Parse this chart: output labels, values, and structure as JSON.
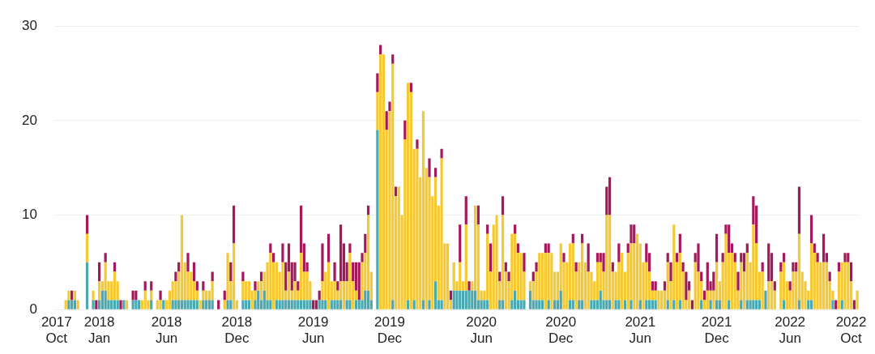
{
  "chart_data": {
    "type": "bar",
    "stacked": true,
    "grid": "y",
    "legend": false,
    "ylim": [
      0,
      30
    ],
    "yticks": [
      0,
      10,
      20,
      30
    ],
    "categories": [
      "2017 Oct",
      null,
      null,
      null,
      null,
      null,
      null,
      null,
      null,
      null,
      null,
      null,
      null,
      null,
      "2018 Jan",
      null,
      null,
      null,
      null,
      null,
      null,
      null,
      null,
      null,
      null,
      null,
      null,
      null,
      null,
      null,
      null,
      null,
      null,
      null,
      null,
      null,
      "2018 Jun",
      null,
      null,
      null,
      null,
      null,
      null,
      null,
      null,
      null,
      null,
      null,
      null,
      null,
      null,
      null,
      null,
      null,
      null,
      null,
      null,
      null,
      null,
      "2018 Dec",
      null,
      null,
      null,
      null,
      null,
      null,
      null,
      null,
      null,
      null,
      null,
      null,
      null,
      null,
      null,
      null,
      null,
      null,
      null,
      null,
      null,
      null,
      null,
      null,
      "2019 Jun",
      null,
      null,
      null,
      null,
      null,
      null,
      null,
      null,
      null,
      null,
      null,
      null,
      null,
      null,
      null,
      null,
      null,
      null,
      null,
      null,
      null,
      null,
      null,
      null,
      "2019 Dec",
      null,
      null,
      null,
      null,
      null,
      null,
      null,
      null,
      null,
      null,
      null,
      null,
      null,
      null,
      null,
      null,
      null,
      null,
      null,
      null,
      null,
      null,
      null,
      null,
      null,
      null,
      null,
      null,
      null,
      "2020 Jun",
      null,
      null,
      null,
      null,
      null,
      null,
      null,
      null,
      null,
      null,
      null,
      null,
      null,
      null,
      null,
      null,
      null,
      null,
      null,
      null,
      null,
      null,
      null,
      null,
      null,
      "2020 Dec",
      null,
      null,
      null,
      null,
      null,
      null,
      null,
      null,
      null,
      null,
      null,
      null,
      null,
      null,
      null,
      null,
      null,
      null,
      null,
      null,
      null,
      null,
      null,
      null,
      null,
      "2021 Jun",
      null,
      null,
      null,
      null,
      null,
      null,
      null,
      null,
      null,
      null,
      null,
      null,
      null,
      null,
      null,
      null,
      null,
      null,
      null,
      null,
      null,
      null,
      null,
      null,
      "2021 Dec",
      null,
      null,
      null,
      null,
      null,
      null,
      null,
      null,
      null,
      null,
      null,
      null,
      null,
      null,
      null,
      null,
      null,
      null,
      null,
      null,
      null,
      null,
      null,
      "2022 Jun",
      null,
      null,
      null,
      null,
      null,
      null,
      null,
      null,
      null,
      null,
      null,
      null,
      null,
      null,
      null,
      null,
      null,
      null,
      null,
      "2022 Oct",
      null,
      null
    ],
    "series": [
      {
        "color": "#4aa8b0",
        "values": [
          0,
          0,
          0,
          0,
          1,
          1,
          1,
          0,
          0,
          0,
          5,
          0,
          1,
          0,
          1,
          2,
          2,
          1,
          1,
          1,
          1,
          0,
          1,
          0,
          0,
          1,
          1,
          1,
          0,
          0,
          0,
          1,
          0,
          0,
          0,
          1,
          0,
          0,
          1,
          1,
          1,
          1,
          1,
          1,
          1,
          1,
          1,
          0,
          1,
          1,
          1,
          1,
          0,
          0,
          0,
          0,
          1,
          1,
          0,
          0,
          0,
          1,
          1,
          1,
          0,
          1,
          2,
          1,
          2,
          1,
          1,
          0,
          1,
          1,
          1,
          1,
          1,
          1,
          1,
          1,
          1,
          1,
          1,
          1,
          0,
          0,
          1,
          1,
          1,
          0,
          1,
          1,
          1,
          1,
          0,
          1,
          1,
          0,
          1,
          1,
          1,
          2,
          2,
          1,
          0,
          19,
          0,
          0,
          0,
          0,
          1,
          0,
          0,
          0,
          0,
          1,
          0,
          1,
          0,
          0,
          1,
          0,
          1,
          0,
          3,
          1,
          1,
          0,
          0,
          0,
          2,
          2,
          2,
          2,
          2,
          2,
          2,
          2,
          1,
          1,
          1,
          1,
          0,
          0,
          0,
          1,
          1,
          0,
          0,
          1,
          2,
          1,
          1,
          1,
          0,
          2,
          1,
          1,
          1,
          1,
          0,
          1,
          0,
          1,
          1,
          2,
          0,
          0,
          1,
          1,
          0,
          1,
          1,
          0,
          0,
          1,
          1,
          1,
          2,
          1,
          1,
          1,
          0,
          1,
          1,
          0,
          1,
          0,
          1,
          0,
          0,
          1,
          0,
          1,
          1,
          1,
          1,
          0,
          0,
          0,
          1,
          0,
          1,
          0,
          1,
          0,
          0,
          0,
          0,
          0,
          0,
          1,
          0,
          0,
          1,
          0,
          1,
          1,
          0,
          0,
          1,
          0,
          0,
          0,
          1,
          0,
          1,
          1,
          1,
          1,
          1,
          0,
          2,
          0,
          0,
          0,
          0,
          0,
          1,
          0,
          0,
          0,
          0,
          1,
          0,
          0,
          1,
          1,
          0,
          0,
          0,
          0,
          0,
          0,
          1,
          0,
          0,
          1,
          0,
          0,
          0,
          0,
          0
        ]
      },
      {
        "color": "#f5c933",
        "values": [
          0,
          0,
          0,
          1,
          1,
          0,
          1,
          1,
          0,
          0,
          3,
          0,
          1,
          0,
          2,
          1,
          3,
          2,
          2,
          3,
          2,
          0,
          0,
          1,
          0,
          0,
          0,
          0,
          1,
          2,
          1,
          1,
          0,
          1,
          1,
          0,
          1,
          2,
          2,
          2,
          3,
          9,
          4,
          3,
          3,
          2,
          1,
          1,
          1,
          1,
          1,
          2,
          0,
          0,
          0,
          1,
          5,
          2,
          7,
          1,
          0,
          2,
          2,
          2,
          2,
          1,
          1,
          2,
          2,
          4,
          5,
          5,
          4,
          3,
          4,
          1,
          3,
          1,
          2,
          1,
          5,
          3,
          3,
          2,
          0,
          0,
          0,
          2,
          3,
          5,
          2,
          2,
          1,
          2,
          3,
          2,
          5,
          3,
          1,
          0,
          4,
          4,
          8,
          3,
          0,
          4,
          27,
          27,
          19,
          21,
          25,
          12,
          13,
          10,
          18,
          23,
          23,
          16,
          17,
          14,
          20,
          15,
          13,
          12,
          11,
          10,
          15,
          7,
          7,
          1,
          3,
          1,
          3,
          1,
          7,
          0,
          1,
          9,
          8,
          1,
          1,
          7,
          4,
          9,
          10,
          2,
          9,
          4,
          3,
          7,
          6,
          5,
          5,
          3,
          0,
          1,
          2,
          3,
          5,
          5,
          6,
          5,
          6,
          3,
          3,
          5,
          5,
          5,
          6,
          6,
          4,
          4,
          6,
          5,
          4,
          3,
          2,
          4,
          3,
          3,
          9,
          9,
          4,
          3,
          4,
          6,
          3,
          6,
          6,
          7,
          8,
          6,
          5,
          4,
          3,
          1,
          1,
          2,
          2,
          2,
          4,
          3,
          8,
          5,
          5,
          4,
          1,
          2,
          0,
          5,
          4,
          2,
          1,
          2,
          1,
          2,
          4,
          2,
          5,
          8,
          5,
          6,
          5,
          2,
          4,
          4,
          5,
          4,
          8,
          6,
          3,
          4,
          0,
          3,
          3,
          2,
          0,
          4,
          4,
          3,
          2,
          4,
          4,
          7,
          4,
          3,
          1,
          6,
          6,
          5,
          5,
          5,
          5,
          3,
          1,
          0,
          4,
          4,
          5,
          5,
          3,
          0,
          2
        ]
      },
      {
        "color": "#a3195b",
        "values": [
          0,
          0,
          0,
          0,
          0,
          1,
          0,
          0,
          0,
          0,
          2,
          0,
          0,
          1,
          2,
          0,
          1,
          0,
          0,
          1,
          0,
          1,
          0,
          0,
          0,
          1,
          1,
          0,
          0,
          1,
          0,
          1,
          0,
          0,
          1,
          0,
          0,
          0,
          0,
          1,
          1,
          0,
          0,
          2,
          0,
          2,
          1,
          0,
          1,
          0,
          0,
          1,
          0,
          1,
          0,
          1,
          0,
          2,
          4,
          0,
          0,
          1,
          0,
          0,
          0,
          1,
          0,
          1,
          0,
          0,
          1,
          1,
          0,
          0,
          2,
          3,
          3,
          3,
          2,
          1,
          5,
          3,
          1,
          0,
          1,
          1,
          1,
          4,
          0,
          3,
          0,
          2,
          1,
          6,
          4,
          2,
          1,
          2,
          3,
          4,
          1,
          2,
          1,
          0,
          0,
          2,
          1,
          0,
          2,
          1,
          1,
          1,
          0,
          0,
          2,
          0,
          1,
          0,
          1,
          0,
          0,
          0,
          2,
          0,
          1,
          0,
          1,
          0,
          0,
          1,
          0,
          0,
          4,
          0,
          3,
          1,
          0,
          0,
          2,
          0,
          0,
          1,
          3,
          0,
          0,
          1,
          2,
          1,
          1,
          0,
          1,
          1,
          0,
          2,
          0,
          0,
          1,
          1,
          0,
          0,
          1,
          1,
          0,
          0,
          0,
          0,
          1,
          0,
          0,
          1,
          1,
          0,
          1,
          0,
          3,
          0,
          0,
          1,
          1,
          2,
          3,
          4,
          1,
          0,
          2,
          0,
          0,
          1,
          2,
          2,
          0,
          0,
          0,
          2,
          2,
          1,
          1,
          0,
          0,
          1,
          1,
          2,
          0,
          1,
          2,
          1,
          3,
          1,
          1,
          1,
          3,
          1,
          1,
          3,
          1,
          2,
          3,
          0,
          1,
          1,
          3,
          1,
          1,
          2,
          1,
          2,
          1,
          0,
          3,
          4,
          0,
          1,
          0,
          4,
          3,
          1,
          0,
          1,
          1,
          0,
          1,
          1,
          1,
          5,
          0,
          0,
          0,
          3,
          1,
          1,
          0,
          3,
          1,
          1,
          0,
          1,
          1,
          0,
          1,
          1,
          2,
          1,
          0
        ]
      }
    ]
  }
}
